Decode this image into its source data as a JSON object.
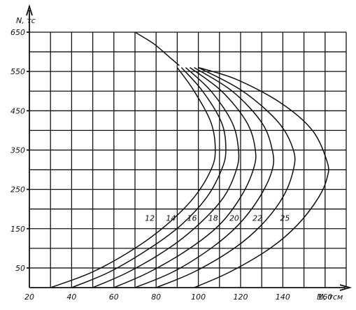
{
  "chart_data": {
    "type": "line",
    "title": "",
    "xlabel": "M, тсм",
    "ylabel": "N, тс",
    "xlim": [
      20,
      170
    ],
    "ylim": [
      0,
      650
    ],
    "x_ticks": [
      20,
      40,
      60,
      80,
      100,
      120,
      140,
      160
    ],
    "x_tick_labels": [
      "20",
      "40",
      "60",
      "80",
      "100",
      "120",
      "140",
      "160"
    ],
    "y_ticks": [
      50,
      150,
      250,
      350,
      450,
      550,
      650
    ],
    "y_tick_labels": [
      "50",
      "150",
      "250",
      "350",
      "450",
      "550",
      "650"
    ],
    "x_grid": [
      20,
      30,
      40,
      50,
      60,
      70,
      80,
      90,
      100,
      110,
      120,
      130,
      140,
      150,
      160,
      170
    ],
    "y_grid": [
      0,
      50,
      100,
      150,
      200,
      250,
      300,
      350,
      400,
      450,
      500,
      550,
      600,
      650
    ],
    "grid": true,
    "legend": "none",
    "series": [
      {
        "name": "12",
        "label_at": [
          77,
          170
        ],
        "points": [
          [
            30,
            0
          ],
          [
            50,
            40
          ],
          [
            70,
            100
          ],
          [
            85,
            160
          ],
          [
            98,
            230
          ],
          [
            106,
            300
          ],
          [
            108,
            350
          ],
          [
            106,
            420
          ],
          [
            98,
            500
          ],
          [
            90,
            560
          ]
        ]
      },
      {
        "name": "14",
        "label_at": [
          87,
          170
        ],
        "points": [
          [
            40,
            0
          ],
          [
            58,
            40
          ],
          [
            77,
            100
          ],
          [
            92,
            160
          ],
          [
            104,
            230
          ],
          [
            111,
            300
          ],
          [
            113,
            350
          ],
          [
            111,
            420
          ],
          [
            102,
            500
          ],
          [
            92,
            560
          ]
        ]
      },
      {
        "name": "16",
        "label_at": [
          97,
          170
        ],
        "points": [
          [
            50,
            0
          ],
          [
            67,
            40
          ],
          [
            86,
            100
          ],
          [
            100,
            160
          ],
          [
            112,
            230
          ],
          [
            118,
            300
          ],
          [
            119,
            350
          ],
          [
            116,
            420
          ],
          [
            106,
            500
          ],
          [
            94,
            560
          ]
        ]
      },
      {
        "name": "18",
        "label_at": [
          107,
          170
        ],
        "points": [
          [
            60,
            0
          ],
          [
            77,
            40
          ],
          [
            96,
            100
          ],
          [
            110,
            160
          ],
          [
            120,
            230
          ],
          [
            126,
            300
          ],
          [
            127,
            350
          ],
          [
            123,
            420
          ],
          [
            111,
            500
          ],
          [
            96,
            560
          ]
        ]
      },
      {
        "name": "20",
        "label_at": [
          117,
          170
        ],
        "points": [
          [
            70,
            0
          ],
          [
            88,
            40
          ],
          [
            106,
            100
          ],
          [
            119,
            160
          ],
          [
            129,
            230
          ],
          [
            135,
            300
          ],
          [
            135,
            350
          ],
          [
            130,
            420
          ],
          [
            116,
            500
          ],
          [
            98,
            560
          ]
        ]
      },
      {
        "name": "22",
        "label_at": [
          128,
          170
        ],
        "points": [
          [
            80,
            0
          ],
          [
            98,
            40
          ],
          [
            117,
            100
          ],
          [
            130,
            160
          ],
          [
            140,
            230
          ],
          [
            145,
            300
          ],
          [
            145,
            350
          ],
          [
            138,
            420
          ],
          [
            121,
            500
          ],
          [
            100,
            560
          ]
        ]
      },
      {
        "name": "25",
        "label_at": [
          141,
          170
        ],
        "points": [
          [
            98,
            0
          ],
          [
            115,
            40
          ],
          [
            134,
            100
          ],
          [
            147,
            160
          ],
          [
            157,
            230
          ],
          [
            161,
            280
          ],
          [
            161,
            320
          ],
          [
            154,
            400
          ],
          [
            139,
            470
          ],
          [
            118,
            530
          ],
          [
            100,
            560
          ]
        ]
      }
    ],
    "envelope": {
      "points": [
        [
          91,
          565
        ],
        [
          86,
          588
        ],
        [
          79,
          620
        ],
        [
          70,
          650
        ]
      ]
    }
  }
}
